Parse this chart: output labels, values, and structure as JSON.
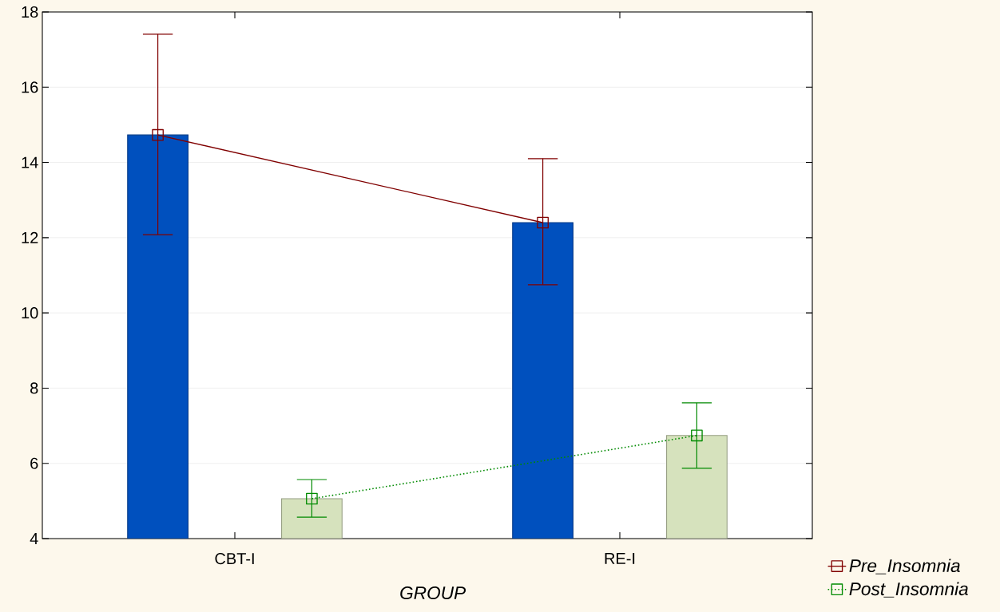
{
  "chart_data": {
    "type": "bar",
    "xlabel": "GROUP",
    "categories": [
      "CBT-I",
      "RE-I"
    ],
    "ylim": [
      4,
      18
    ],
    "yticks": [
      4,
      6,
      8,
      10,
      12,
      14,
      16,
      18
    ],
    "grid": "y",
    "legend": "bottom right",
    "marker": "square",
    "series": [
      {
        "color": "#0050be",
        "values": [
          14.73,
          12.4
        ]
      },
      {
        "color": "#d6e2bd",
        "values": [
          5.06,
          6.74
        ]
      },
      {
        "type": "line",
        "name": "Pre_Insomnia",
        "color": "#800000",
        "line_style": "solid",
        "values": [
          14.73,
          12.4
        ],
        "errors": [
          [
            12.08,
            17.41
          ],
          [
            10.75,
            14.1
          ]
        ]
      },
      {
        "type": "line",
        "name": "Post_Insomnia",
        "color": "#008a00",
        "line_style": "dotted",
        "values": [
          5.06,
          6.74
        ],
        "errors": [
          [
            4.57,
            5.57
          ],
          [
            5.87,
            7.61
          ]
        ]
      }
    ]
  }
}
